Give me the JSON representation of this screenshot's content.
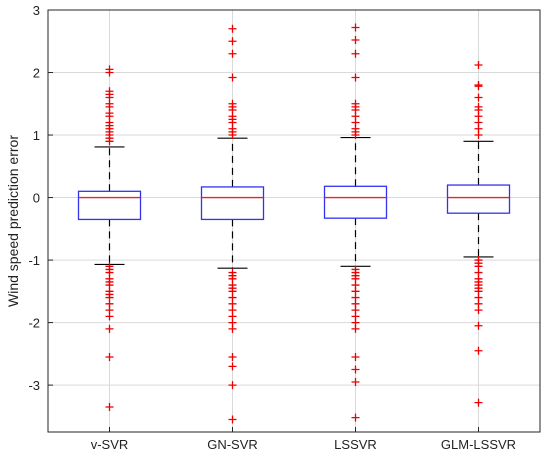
{
  "chart_data": {
    "type": "box",
    "title": "",
    "xlabel": "",
    "ylabel": "Wind speed prediction error",
    "ylim": [
      -3.75,
      3.0
    ],
    "yticks": [
      -3,
      -2,
      -1,
      0,
      1,
      2,
      3
    ],
    "ytick_labels": [
      "-3",
      "-2",
      "-1",
      "0",
      "1",
      "2",
      "3"
    ],
    "categories": [
      "v-SVR",
      "GN-SVR",
      "LSSVR",
      "GLM-LSSVR"
    ],
    "grid": true,
    "colors": {
      "box": "#3333ee",
      "median": "#ee2222",
      "whisker": "#000000",
      "outlier": "#ee0000",
      "grid": "#d9d9d9"
    },
    "boxes": [
      {
        "name": "v-SVR",
        "q1": -0.35,
        "median": 0.0,
        "q3": 0.1,
        "whisker_low": -1.07,
        "whisker_high": 0.81,
        "outliers": [
          2.05,
          2.0,
          1.7,
          1.65,
          1.6,
          1.5,
          1.45,
          1.35,
          1.3,
          1.2,
          1.15,
          1.1,
          1.05,
          1.0,
          0.95,
          0.9,
          -1.1,
          -1.15,
          -1.2,
          -1.3,
          -1.35,
          -1.4,
          -1.5,
          -1.55,
          -1.6,
          -1.7,
          -1.8,
          -1.9,
          -2.1,
          -2.55,
          -3.35
        ]
      },
      {
        "name": "GN-SVR",
        "q1": -0.35,
        "median": 0.0,
        "q3": 0.17,
        "whisker_low": -1.13,
        "whisker_high": 0.95,
        "outliers": [
          2.7,
          2.5,
          2.3,
          1.92,
          1.5,
          1.45,
          1.4,
          1.3,
          1.25,
          1.2,
          1.1,
          1.05,
          1.0,
          -1.2,
          -1.25,
          -1.3,
          -1.4,
          -1.45,
          -1.5,
          -1.6,
          -1.7,
          -1.8,
          -1.9,
          -2.0,
          -2.1,
          -2.55,
          -2.7,
          -3.0,
          -3.55
        ]
      },
      {
        "name": "LSSVR",
        "q1": -0.33,
        "median": 0.0,
        "q3": 0.18,
        "whisker_low": -1.1,
        "whisker_high": 0.96,
        "outliers": [
          2.72,
          2.52,
          2.3,
          1.92,
          1.5,
          1.45,
          1.4,
          1.3,
          1.2,
          1.1,
          1.05,
          1.0,
          -1.15,
          -1.2,
          -1.25,
          -1.3,
          -1.4,
          -1.5,
          -1.6,
          -1.7,
          -1.8,
          -1.9,
          -2.0,
          -2.1,
          -2.55,
          -2.75,
          -2.95,
          -3.52
        ]
      },
      {
        "name": "GLM-LSSVR",
        "q1": -0.25,
        "median": 0.0,
        "q3": 0.2,
        "whisker_low": -0.95,
        "whisker_high": 0.9,
        "outliers": [
          2.12,
          1.8,
          1.78,
          1.6,
          1.45,
          1.4,
          1.3,
          1.2,
          1.1,
          1.0,
          -1.0,
          -1.05,
          -1.1,
          -1.2,
          -1.3,
          -1.35,
          -1.4,
          -1.45,
          -1.5,
          -1.6,
          -1.7,
          -1.8,
          -2.05,
          -2.45,
          -3.28
        ]
      }
    ]
  }
}
